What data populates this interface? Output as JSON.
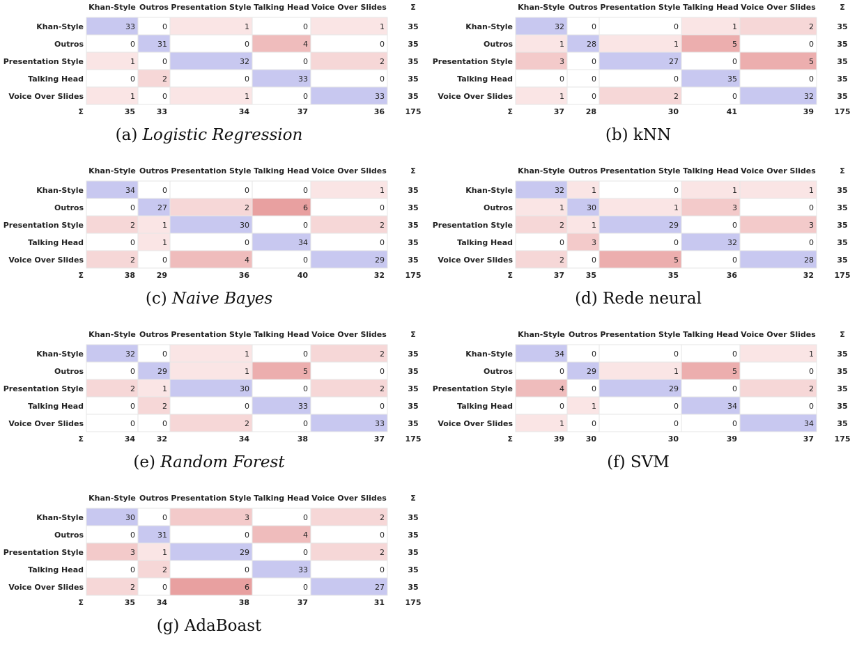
{
  "chart_data": [
    {
      "type": "heatmap",
      "caption_tag": "(a)",
      "caption_text": "Logistic Regression",
      "caption_italic": true,
      "columns": [
        "Khan-Style",
        "Outros",
        "Presentation Style",
        "Talking Head",
        "Voice Over Slides"
      ],
      "rows": [
        "Khan-Style",
        "Outros",
        "Presentation Style",
        "Talking Head",
        "Voice Over Slides"
      ],
      "values": [
        [
          33,
          0,
          1,
          0,
          1
        ],
        [
          0,
          31,
          0,
          4,
          0
        ],
        [
          1,
          0,
          32,
          0,
          2
        ],
        [
          0,
          2,
          0,
          33,
          0
        ],
        [
          1,
          0,
          1,
          0,
          33
        ]
      ],
      "row_sums": [
        35,
        35,
        35,
        35,
        35
      ],
      "col_sums": [
        35,
        33,
        34,
        37,
        36
      ],
      "total": 175,
      "sum_symbol": "Σ"
    },
    {
      "type": "heatmap",
      "caption_tag": "(b)",
      "caption_text": "kNN",
      "caption_italic": false,
      "columns": [
        "Khan-Style",
        "Outros",
        "Presentation Style",
        "Talking Head",
        "Voice Over Slides"
      ],
      "rows": [
        "Khan-Style",
        "Outros",
        "Presentation Style",
        "Talking Head",
        "Voice Over Slides"
      ],
      "values": [
        [
          32,
          0,
          0,
          1,
          2
        ],
        [
          1,
          28,
          1,
          5,
          0
        ],
        [
          3,
          0,
          27,
          0,
          5
        ],
        [
          0,
          0,
          0,
          35,
          0
        ],
        [
          1,
          0,
          2,
          0,
          32
        ]
      ],
      "row_sums": [
        35,
        35,
        35,
        35,
        35
      ],
      "col_sums": [
        37,
        28,
        30,
        41,
        39
      ],
      "total": 175,
      "sum_symbol": "Σ"
    },
    {
      "type": "heatmap",
      "caption_tag": "(c)",
      "caption_text": "Naive Bayes",
      "caption_italic": true,
      "columns": [
        "Khan-Style",
        "Outros",
        "Presentation Style",
        "Talking Head",
        "Voice Over Slides"
      ],
      "rows": [
        "Khan-Style",
        "Outros",
        "Presentation Style",
        "Talking Head",
        "Voice Over Slides"
      ],
      "values": [
        [
          34,
          0,
          0,
          0,
          1
        ],
        [
          0,
          27,
          2,
          6,
          0
        ],
        [
          2,
          1,
          30,
          0,
          2
        ],
        [
          0,
          1,
          0,
          34,
          0
        ],
        [
          2,
          0,
          4,
          0,
          29
        ]
      ],
      "row_sums": [
        35,
        35,
        35,
        35,
        35
      ],
      "col_sums": [
        38,
        29,
        36,
        40,
        32
      ],
      "total": 175,
      "sum_symbol": "Σ"
    },
    {
      "type": "heatmap",
      "caption_tag": "(d)",
      "caption_text": "Rede neural",
      "caption_italic": false,
      "columns": [
        "Khan-Style",
        "Outros",
        "Presentation Style",
        "Talking Head",
        "Voice Over Slides"
      ],
      "rows": [
        "Khan-Style",
        "Outros",
        "Presentation Style",
        "Talking Head",
        "Voice Over Slides"
      ],
      "values": [
        [
          32,
          1,
          0,
          1,
          1
        ],
        [
          1,
          30,
          1,
          3,
          0
        ],
        [
          2,
          1,
          29,
          0,
          3
        ],
        [
          0,
          3,
          0,
          32,
          0
        ],
        [
          2,
          0,
          5,
          0,
          28
        ]
      ],
      "row_sums": [
        35,
        35,
        35,
        35,
        35
      ],
      "col_sums": [
        37,
        35,
        35,
        36,
        32
      ],
      "total": 175,
      "sum_symbol": "Σ"
    },
    {
      "type": "heatmap",
      "caption_tag": "(e)",
      "caption_text": "Random Forest",
      "caption_italic": true,
      "columns": [
        "Khan-Style",
        "Outros",
        "Presentation Style",
        "Talking Head",
        "Voice Over Slides"
      ],
      "rows": [
        "Khan-Style",
        "Outros",
        "Presentation Style",
        "Talking Head",
        "Voice Over Slides"
      ],
      "values": [
        [
          32,
          0,
          1,
          0,
          2
        ],
        [
          0,
          29,
          1,
          5,
          0
        ],
        [
          2,
          1,
          30,
          0,
          2
        ],
        [
          0,
          2,
          0,
          33,
          0
        ],
        [
          0,
          0,
          2,
          0,
          33
        ]
      ],
      "row_sums": [
        35,
        35,
        35,
        35,
        35
      ],
      "col_sums": [
        34,
        32,
        34,
        38,
        37
      ],
      "total": 175,
      "sum_symbol": "Σ"
    },
    {
      "type": "heatmap",
      "caption_tag": "(f)",
      "caption_text": "SVM",
      "caption_italic": false,
      "columns": [
        "Khan-Style",
        "Outros",
        "Presentation Style",
        "Talking Head",
        "Voice Over Slides"
      ],
      "rows": [
        "Khan-Style",
        "Outros",
        "Presentation Style",
        "Talking Head",
        "Voice Over Slides"
      ],
      "values": [
        [
          34,
          0,
          0,
          0,
          1
        ],
        [
          0,
          29,
          1,
          5,
          0
        ],
        [
          4,
          0,
          29,
          0,
          2
        ],
        [
          0,
          1,
          0,
          34,
          0
        ],
        [
          1,
          0,
          0,
          0,
          34
        ]
      ],
      "row_sums": [
        35,
        35,
        35,
        35,
        35
      ],
      "col_sums": [
        39,
        30,
        30,
        39,
        37
      ],
      "total": 175,
      "sum_symbol": "Σ"
    },
    {
      "type": "heatmap",
      "caption_tag": "(g)",
      "caption_text": "AdaBoast",
      "caption_italic": false,
      "columns": [
        "Khan-Style",
        "Outros",
        "Presentation Style",
        "Talking Head",
        "Voice Over Slides"
      ],
      "rows": [
        "Khan-Style",
        "Outros",
        "Presentation Style",
        "Talking Head",
        "Voice Over Slides"
      ],
      "values": [
        [
          30,
          0,
          3,
          0,
          2
        ],
        [
          0,
          31,
          0,
          4,
          0
        ],
        [
          3,
          1,
          29,
          0,
          2
        ],
        [
          0,
          2,
          0,
          33,
          0
        ],
        [
          2,
          0,
          6,
          0,
          27
        ]
      ],
      "row_sums": [
        35,
        35,
        35,
        35,
        35
      ],
      "col_sums": [
        35,
        34,
        38,
        37,
        31
      ],
      "total": 175,
      "sum_symbol": "Σ"
    }
  ],
  "colors": {
    "diagonal": "#c8c8f0",
    "offdiagonal_max": "#e8a0a0",
    "offdiagonal_min": "#fdf3f3",
    "border": "#e6e6e6",
    "text": "#222222"
  }
}
